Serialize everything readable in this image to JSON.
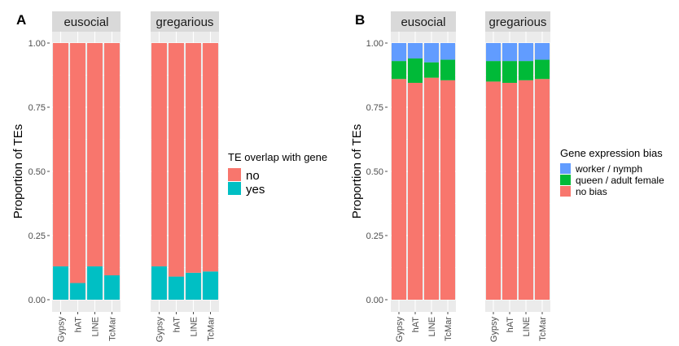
{
  "chart_data": [
    {
      "panel_label": "A",
      "type": "bar",
      "stacked": true,
      "facets": [
        "eusocial",
        "gregarious"
      ],
      "categories": [
        "Gypsy",
        "hAT",
        "LINE",
        "TcMar"
      ],
      "ylabel": "Proportion of TEs",
      "yticks": [
        "0.00",
        "0.25",
        "0.50",
        "0.75",
        "1.00"
      ],
      "ylim": [
        0,
        1
      ],
      "legend": {
        "title": "TE overlap with gene",
        "position": "right"
      },
      "series": [
        {
          "name": "yes",
          "color": "#00BFC4",
          "values": {
            "eusocial": [
              0.13,
              0.065,
              0.13,
              0.095
            ],
            "gregarious": [
              0.13,
              0.09,
              0.105,
              0.11
            ]
          }
        },
        {
          "name": "no",
          "color": "#F8766D",
          "values": {
            "eusocial": [
              0.87,
              0.935,
              0.87,
              0.905
            ],
            "gregarious": [
              0.87,
              0.91,
              0.895,
              0.89
            ]
          }
        }
      ]
    },
    {
      "panel_label": "B",
      "type": "bar",
      "stacked": true,
      "facets": [
        "eusocial",
        "gregarious"
      ],
      "categories": [
        "Gypsy",
        "hAT",
        "LINE",
        "TcMar"
      ],
      "ylabel": "Proportion of TEs",
      "yticks": [
        "0.00",
        "0.25",
        "0.50",
        "0.75",
        "1.00"
      ],
      "ylim": [
        0,
        1
      ],
      "legend": {
        "title": "Gene expression bias",
        "position": "right"
      },
      "series": [
        {
          "name": "no bias",
          "color": "#F8766D",
          "values": {
            "eusocial": [
              0.86,
              0.845,
              0.865,
              0.855
            ],
            "gregarious": [
              0.85,
              0.845,
              0.855,
              0.86
            ]
          }
        },
        {
          "name": "queen / adult female",
          "color": "#00BA38",
          "values": {
            "eusocial": [
              0.07,
              0.095,
              0.06,
              0.08
            ],
            "gregarious": [
              0.08,
              0.085,
              0.075,
              0.075
            ]
          }
        },
        {
          "name": "worker / nymph",
          "color": "#619CFF",
          "values": {
            "eusocial": [
              0.07,
              0.06,
              0.075,
              0.065
            ],
            "gregarious": [
              0.07,
              0.07,
              0.07,
              0.065
            ]
          }
        }
      ]
    }
  ]
}
